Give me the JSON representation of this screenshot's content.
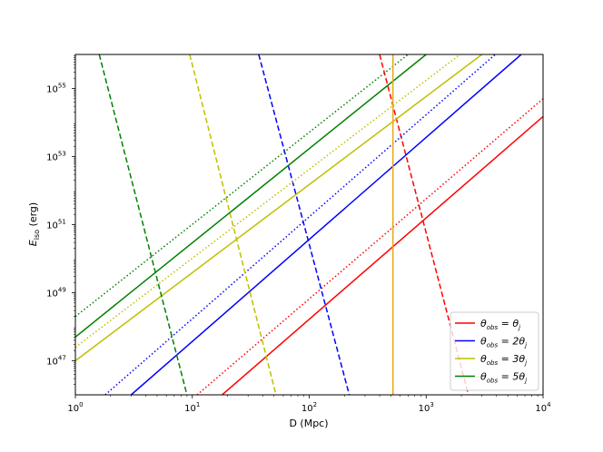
{
  "chart_data": {
    "type": "line",
    "xscale": "log",
    "yscale": "log",
    "xlim": [
      1,
      10000
    ],
    "ylim": [
      1e+46,
      1e+56
    ],
    "xlabel": "D (Mpc)",
    "ylabel": "E_iso (erg)",
    "grid": false,
    "legend_placement": "bottom-right",
    "x_ticks": [
      {
        "value": 1,
        "base": "10",
        "exp": "0"
      },
      {
        "value": 10,
        "base": "10",
        "exp": "1"
      },
      {
        "value": 100,
        "base": "10",
        "exp": "2"
      },
      {
        "value": 1000,
        "base": "10",
        "exp": "3"
      },
      {
        "value": 10000,
        "base": "10",
        "exp": "4"
      }
    ],
    "y_ticks": [
      {
        "value": 1e+47,
        "base": "10",
        "exp": "47"
      },
      {
        "value": 1e+49,
        "base": "10",
        "exp": "49"
      },
      {
        "value": 1e+51,
        "base": "10",
        "exp": "51"
      },
      {
        "value": 1e+53,
        "base": "10",
        "exp": "53"
      },
      {
        "value": 1e+55,
        "base": "10",
        "exp": "55"
      }
    ],
    "legend": [
      {
        "color": "#ff0000",
        "main": "θ",
        "sub": "obs",
        "rhs": " = θ",
        "rhs_sub": "j"
      },
      {
        "color": "#0000ff",
        "main": "θ",
        "sub": "obs",
        "rhs": " = 2θ",
        "rhs_sub": "j"
      },
      {
        "color": "#bfbf00",
        "main": "θ",
        "sub": "obs",
        "rhs": " = 3θ",
        "rhs_sub": "j"
      },
      {
        "color": "#008000",
        "main": "θ",
        "sub": "obs",
        "rhs": " = 5θ",
        "rhs_sub": "j"
      }
    ],
    "series": [
      {
        "color": "#ff0000",
        "style": "solid",
        "points": [
          [
            18,
            1e+46
          ],
          [
            10000,
            1.5e+54
          ]
        ]
      },
      {
        "color": "#ff0000",
        "style": "dotted",
        "points": [
          [
            11,
            1e+46
          ],
          [
            10000,
            5e+54
          ]
        ]
      },
      {
        "color": "#ff0000",
        "style": "dashed",
        "points": [
          [
            400,
            1e+56
          ],
          [
            2300,
            1e+46
          ]
        ]
      },
      {
        "color": "#0000ff",
        "style": "solid",
        "points": [
          [
            3,
            1e+46
          ],
          [
            6500,
            1e+56
          ]
        ]
      },
      {
        "color": "#0000ff",
        "style": "dotted",
        "points": [
          [
            1.8,
            1e+46
          ],
          [
            3900,
            1e+56
          ]
        ]
      },
      {
        "color": "#0000ff",
        "style": "dashed",
        "points": [
          [
            37,
            1e+56
          ],
          [
            220,
            1e+46
          ]
        ]
      },
      {
        "color": "#bfbf00",
        "style": "solid",
        "points": [
          [
            1,
            1e+47
          ],
          [
            3000,
            1e+56
          ]
        ]
      },
      {
        "color": "#bfbf00",
        "style": "dotted",
        "points": [
          [
            1,
            2.5e+47
          ],
          [
            1950,
            1e+56
          ]
        ]
      },
      {
        "color": "#bfbf00",
        "style": "dashed",
        "points": [
          [
            9.5,
            1e+56
          ],
          [
            52,
            1e+46
          ]
        ]
      },
      {
        "color": "#008000",
        "style": "solid",
        "points": [
          [
            1,
            5e+47
          ],
          [
            1000,
            1e+56
          ]
        ]
      },
      {
        "color": "#008000",
        "style": "dotted",
        "points": [
          [
            1,
            2e+48
          ],
          [
            700,
            1e+56
          ]
        ]
      },
      {
        "color": "#008000",
        "style": "dashed",
        "points": [
          [
            1.6,
            1e+56
          ],
          [
            9,
            1e+46
          ]
        ]
      },
      {
        "color": "#e6a817",
        "style": "solid",
        "points": [
          [
            520,
            1e+46
          ],
          [
            520,
            1e+56
          ]
        ]
      }
    ]
  }
}
